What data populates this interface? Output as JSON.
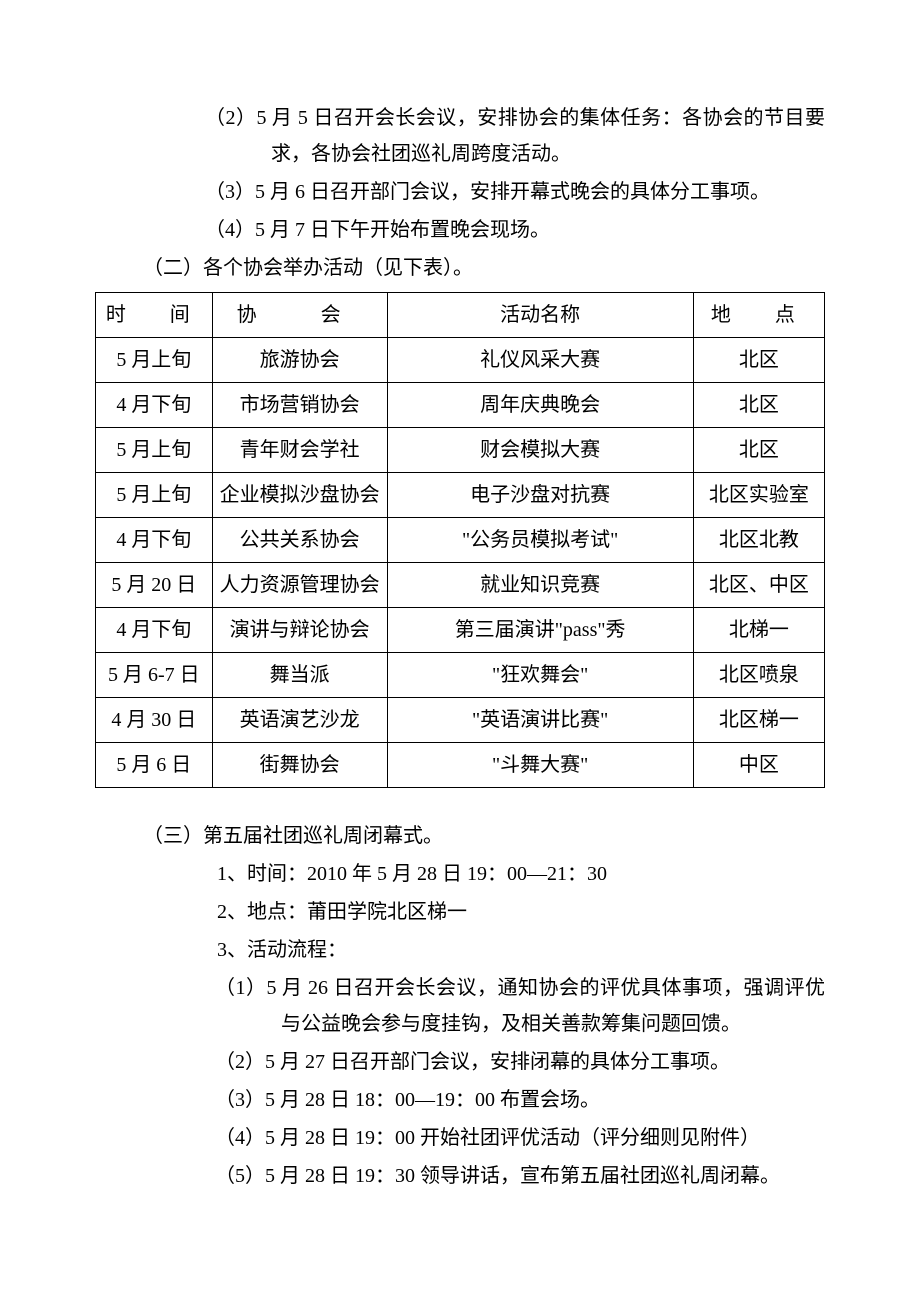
{
  "intro_items": [
    "（2）5 月 5 日召开会长会议，安排协会的集体任务：各协会的节目要求，各协会社团巡礼周跨度活动。",
    "（3）5 月 6 日召开部门会议，安排开幕式晚会的具体分工事项。",
    "（4）5 月 7 日下午开始布置晚会现场。"
  ],
  "section2_heading": "（二）各个协会举办活动（见下表）。",
  "table": {
    "headers": {
      "time": "时　间",
      "assoc": "协　会",
      "event": "活动名称",
      "loc": "地　点"
    },
    "rows": [
      {
        "time": "5 月上旬",
        "assoc": "旅游协会",
        "event": "礼仪风采大赛",
        "loc": "北区"
      },
      {
        "time": "4 月下旬",
        "assoc": "市场营销协会",
        "event": "周年庆典晚会",
        "loc": "北区"
      },
      {
        "time": "5 月上旬",
        "assoc": "青年财会学社",
        "event": "财会模拟大赛",
        "loc": "北区"
      },
      {
        "time": "5 月上旬",
        "assoc": "企业模拟沙盘协会",
        "event": "电子沙盘对抗赛",
        "loc": "北区实验室"
      },
      {
        "time": "4 月下旬",
        "assoc": "公共关系协会",
        "event": "\"公务员模拟考试\"",
        "loc": "北区北教"
      },
      {
        "time": "5 月 20 日",
        "assoc": "人力资源管理协会",
        "event": "就业知识竞赛",
        "loc": "北区、中区"
      },
      {
        "time": "4 月下旬",
        "assoc": "演讲与辩论协会",
        "event": "第三届演讲\"pass\"秀",
        "loc": "北梯一"
      },
      {
        "time": "5 月 6-7 日",
        "assoc": "舞当派",
        "event": "\"狂欢舞会\"",
        "loc": "北区喷泉"
      },
      {
        "time": "4 月 30 日",
        "assoc": "英语演艺沙龙",
        "event": "\"英语演讲比赛\"",
        "loc": "北区梯一"
      },
      {
        "time": "5 月 6 日",
        "assoc": "街舞协会",
        "event": "\"斗舞大赛\"",
        "loc": "中区"
      }
    ]
  },
  "section3_heading": "（三）第五届社团巡礼周闭幕式。",
  "section3_subs": [
    "1、时间：2010 年 5 月 28 日 19：00—21：30",
    "2、地点：莆田学院北区梯一",
    "3、活动流程："
  ],
  "section3_flow": [
    "（1）5 月 26 日召开会长会议，通知协会的评优具体事项，强调评优与公益晚会参与度挂钩，及相关善款筹集问题回馈。",
    "（2）5 月 27 日召开部门会议，安排闭幕的具体分工事项。",
    "（3）5 月 28 日 18：00—19：00 布置会场。",
    "（4）5 月 28 日 19：00 开始社团评优活动（评分细则见附件）",
    "（5）5 月 28 日 19：30 领导讲话，宣布第五届社团巡礼周闭幕。"
  ]
}
